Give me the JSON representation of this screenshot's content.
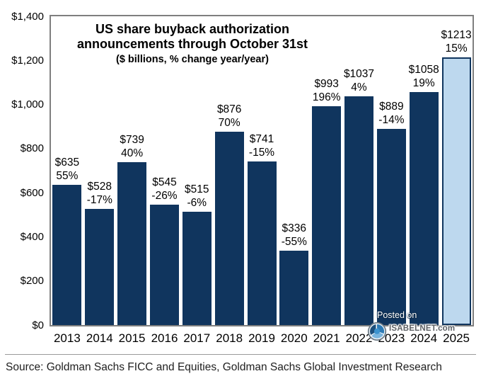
{
  "chart_data": {
    "type": "bar",
    "title_lines": [
      "US share buyback authorization",
      "announcements through October 31st"
    ],
    "subtitle": "($ billions, % change year/year)",
    "categories": [
      "2013",
      "2014",
      "2015",
      "2016",
      "2017",
      "2018",
      "2019",
      "2020",
      "2021",
      "2022",
      "2023",
      "2024",
      "2025"
    ],
    "values": [
      635,
      528,
      739,
      545,
      515,
      876,
      741,
      336,
      993,
      1037,
      889,
      1058,
      1213
    ],
    "value_labels": [
      "$635",
      "$528",
      "$739",
      "$545",
      "$515",
      "$876",
      "$741",
      "$336",
      "$993",
      "$1037",
      "$889",
      "$1058",
      "$1213"
    ],
    "pct_labels": [
      "55%",
      "-17%",
      "40%",
      "-26%",
      "-6%",
      "70%",
      "-15%",
      "-55%",
      "196%",
      "4%",
      "-14%",
      "19%",
      "15%"
    ],
    "ylim": [
      0,
      1400
    ],
    "ytick_values": [
      0,
      200,
      400,
      600,
      800,
      1000,
      1200,
      1400
    ],
    "ytick_labels": [
      "$0",
      "$200",
      "$400",
      "$600",
      "$800",
      "$1,000",
      "$1,200",
      "$1,400"
    ],
    "grid": false,
    "legend": "none",
    "bar_color": "#10355E",
    "highlight_bar_color": "#BDD8EE",
    "highlight_index": 12,
    "axis_color": "#7F7F7F"
  },
  "watermark": {
    "posted_on": "Posted on",
    "brand": "ISABELNET.com"
  },
  "source_line": "Source: Goldman Sachs FICC and Equities, Goldman Sachs Global Investment Research"
}
